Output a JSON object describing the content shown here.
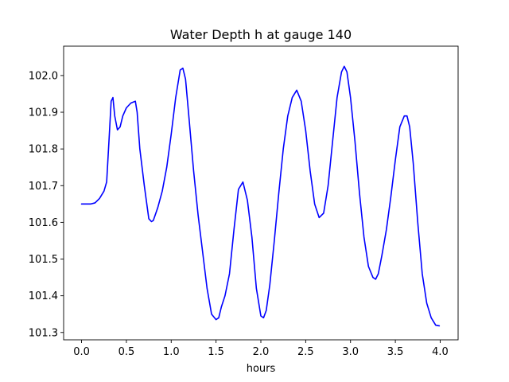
{
  "chart_data": {
    "type": "line",
    "title": "Water Depth h at gauge 140",
    "xlabel": "hours",
    "ylabel": "",
    "xlim": [
      -0.2,
      4.2
    ],
    "ylim": [
      101.28,
      102.08
    ],
    "xticks": [
      0.0,
      0.5,
      1.0,
      1.5,
      2.0,
      2.5,
      3.0,
      3.5,
      4.0
    ],
    "xtick_labels": [
      "0.0",
      "0.5",
      "1.0",
      "1.5",
      "2.0",
      "2.5",
      "3.0",
      "3.5",
      "4.0"
    ],
    "yticks": [
      101.3,
      101.4,
      101.5,
      101.6,
      101.7,
      101.8,
      101.9,
      102.0
    ],
    "ytick_labels": [
      "101.3",
      "101.4",
      "101.5",
      "101.6",
      "101.7",
      "101.8",
      "101.9",
      "102.0"
    ],
    "grid": false,
    "series": [
      {
        "color": "#0000ff",
        "x": [
          0.0,
          0.1,
          0.15,
          0.2,
          0.25,
          0.28,
          0.31,
          0.33,
          0.35,
          0.37,
          0.4,
          0.43,
          0.46,
          0.5,
          0.55,
          0.6,
          0.62,
          0.65,
          0.7,
          0.75,
          0.78,
          0.8,
          0.85,
          0.9,
          0.95,
          1.0,
          1.05,
          1.1,
          1.13,
          1.16,
          1.2,
          1.25,
          1.3,
          1.35,
          1.4,
          1.45,
          1.5,
          1.53,
          1.56,
          1.6,
          1.65,
          1.7,
          1.75,
          1.8,
          1.85,
          1.9,
          1.95,
          2.0,
          2.03,
          2.06,
          2.1,
          2.15,
          2.2,
          2.25,
          2.3,
          2.35,
          2.4,
          2.45,
          2.5,
          2.55,
          2.6,
          2.65,
          2.7,
          2.75,
          2.8,
          2.85,
          2.9,
          2.93,
          2.96,
          3.0,
          3.05,
          3.1,
          3.15,
          3.2,
          3.25,
          3.28,
          3.31,
          3.35,
          3.4,
          3.45,
          3.5,
          3.55,
          3.6,
          3.63,
          3.66,
          3.7,
          3.75,
          3.8,
          3.85,
          3.9,
          3.95,
          3.99
        ],
        "y": [
          101.65,
          101.65,
          101.653,
          101.665,
          101.685,
          101.71,
          101.84,
          101.93,
          101.94,
          101.89,
          101.852,
          101.86,
          101.89,
          101.912,
          101.925,
          101.93,
          101.9,
          101.8,
          101.7,
          101.61,
          101.602,
          101.605,
          101.64,
          101.685,
          101.75,
          101.84,
          101.94,
          102.015,
          102.02,
          101.99,
          101.88,
          101.74,
          101.62,
          101.52,
          101.42,
          101.35,
          101.335,
          101.34,
          101.37,
          101.4,
          101.46,
          101.58,
          101.69,
          101.71,
          101.66,
          101.56,
          101.42,
          101.345,
          101.34,
          101.36,
          101.43,
          101.55,
          101.68,
          101.8,
          101.89,
          101.94,
          101.96,
          101.93,
          101.85,
          101.74,
          101.65,
          101.613,
          101.625,
          101.7,
          101.82,
          101.94,
          102.01,
          102.025,
          102.01,
          101.94,
          101.82,
          101.68,
          101.56,
          101.48,
          101.45,
          101.445,
          101.46,
          101.51,
          101.58,
          101.67,
          101.77,
          101.86,
          101.89,
          101.89,
          101.86,
          101.76,
          101.6,
          101.46,
          101.38,
          101.34,
          101.32,
          101.318
        ]
      }
    ]
  }
}
